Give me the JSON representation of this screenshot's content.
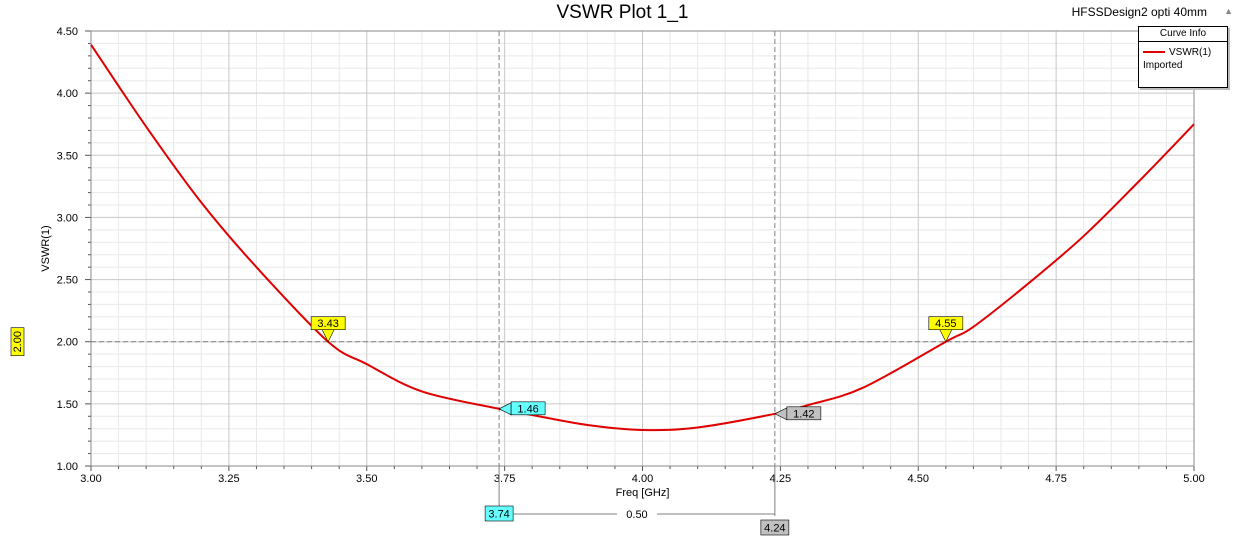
{
  "header": {
    "title": "VSWR Plot 1_1",
    "design": "HFSSDesign2 opti 40mm"
  },
  "legend": {
    "heading": "Curve Info",
    "entry": "VSWR(1)",
    "source": "Imported"
  },
  "chart_data": {
    "type": "line",
    "title": "VSWR Plot 1_1",
    "xlabel": "Freq [GHz]",
    "ylabel": "VSWR(1)",
    "xlim": [
      3.0,
      5.0
    ],
    "ylim": [
      1.0,
      4.5
    ],
    "xticks": [
      "3.00",
      "3.25",
      "3.50",
      "3.75",
      "4.00",
      "4.25",
      "4.50",
      "4.75",
      "5.00"
    ],
    "yticks": [
      "1.00",
      "1.50",
      "2.00",
      "2.50",
      "3.00",
      "3.50",
      "4.00",
      "4.50"
    ],
    "grid": true,
    "legend_position": "top-right",
    "series": [
      {
        "name": "VSWR(1)",
        "color": "#e00000",
        "x": [
          3.0,
          3.1,
          3.2,
          3.3,
          3.43,
          3.5,
          3.6,
          3.74,
          3.8,
          3.9,
          4.0,
          4.1,
          4.24,
          4.3,
          4.4,
          4.55,
          4.6,
          4.7,
          4.8,
          4.9,
          5.0
        ],
        "y": [
          4.39,
          3.73,
          3.12,
          2.6,
          2.0,
          1.82,
          1.6,
          1.46,
          1.41,
          1.33,
          1.29,
          1.31,
          1.42,
          1.49,
          1.63,
          2.0,
          2.12,
          2.47,
          2.85,
          3.29,
          3.75
        ]
      }
    ],
    "reference_line": {
      "y": 2.0,
      "label": "2.00",
      "color": "#ffff00"
    },
    "vertical_markers": [
      {
        "x": 3.74,
        "label": "3.74",
        "color": "#66ffff"
      },
      {
        "x": 4.24,
        "label": "4.24",
        "color": "#c0c0c0"
      }
    ],
    "delta": {
      "label": "0.50"
    },
    "point_markers": [
      {
        "x": 3.43,
        "y": 2.0,
        "label": "3.43",
        "color": "#ffff00",
        "style": "above"
      },
      {
        "x": 4.55,
        "y": 2.0,
        "label": "4.55",
        "color": "#ffff00",
        "style": "above"
      },
      {
        "x": 3.74,
        "y": 1.46,
        "label": "1.46",
        "color": "#66ffff",
        "style": "right"
      },
      {
        "x": 4.24,
        "y": 1.42,
        "label": "1.42",
        "color": "#c0c0c0",
        "style": "right"
      }
    ]
  }
}
